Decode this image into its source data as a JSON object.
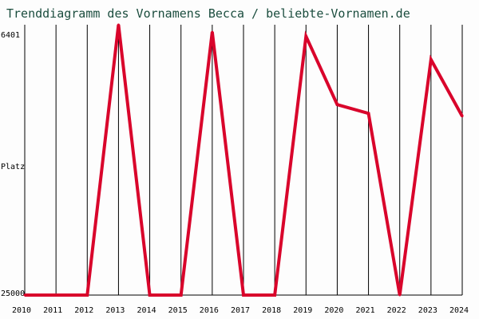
{
  "chart_data": {
    "type": "line",
    "title": "Trenddiagramm des Vornamens Becca / beliebte-Vornamen.de",
    "ylabel": "Platz",
    "y_top_label": "6401",
    "y_bottom_label": "25000",
    "y_axis_inverted": true,
    "ylim": [
      25000,
      6401
    ],
    "grid": "vertical",
    "x": [
      "2010",
      "2011",
      "2012",
      "2013",
      "2014",
      "2015",
      "2016",
      "2017",
      "2018",
      "2019",
      "2020",
      "2021",
      "2022",
      "2023",
      "2024"
    ],
    "series": [
      {
        "values": [
          25000,
          25000,
          25000,
          6401,
          25000,
          25000,
          6900,
          25000,
          25000,
          7200,
          11900,
          12500,
          25000,
          8800,
          12700
        ]
      }
    ],
    "colors": {
      "line": "#d9042b",
      "title": "#1b4d3e",
      "grid": "#000000",
      "text": "#000000"
    }
  }
}
